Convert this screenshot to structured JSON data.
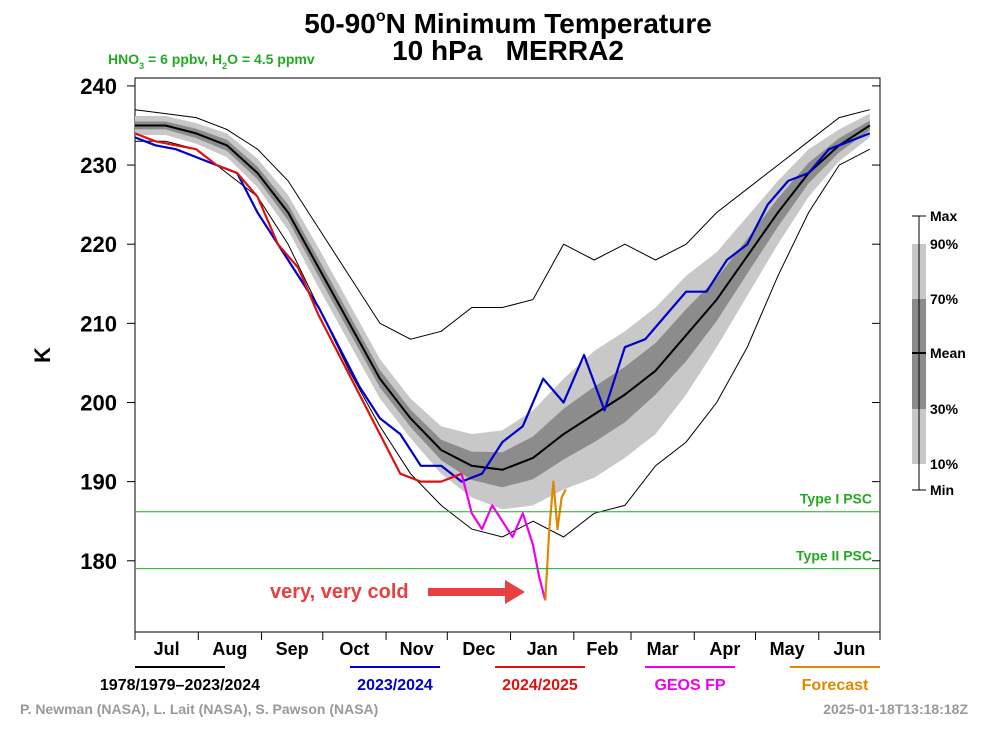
{
  "chart_data": {
    "type": "line",
    "title": {
      "prefix": "50-90",
      "sup": "o",
      "suffix": "N Minimum Temperature"
    },
    "subtitle": "10 hPa   MERRA2",
    "note_parts": [
      "HNO",
      "3",
      " = 6 ppbv, H",
      "2",
      "O = 4.5 ppmv"
    ],
    "ylabel": "K",
    "ylim": [
      171,
      241
    ],
    "yticks": [
      180,
      190,
      200,
      210,
      220,
      230,
      240
    ],
    "xlim": [
      0,
      365
    ],
    "xticks": [
      0,
      31,
      62,
      92,
      123,
      153,
      184,
      215,
      243,
      274,
      304,
      335,
      365
    ],
    "categories": [
      "Jul",
      "Aug",
      "Sep",
      "Oct",
      "Nov",
      "Dec",
      "Jan",
      "Feb",
      "Mar",
      "Apr",
      "May",
      "Jun"
    ],
    "envelope": {
      "x": [
        0,
        15,
        30,
        45,
        60,
        75,
        90,
        105,
        120,
        135,
        150,
        165,
        180,
        195,
        210,
        225,
        240,
        255,
        270,
        285,
        300,
        315,
        330,
        345,
        360
      ],
      "max": [
        237,
        236.5,
        236,
        234.5,
        232,
        228,
        222,
        216,
        210,
        208,
        209,
        212,
        212,
        213,
        220,
        218,
        220,
        218,
        220,
        224,
        227,
        230,
        233,
        236,
        237
      ],
      "p90": [
        236.2,
        236.2,
        235.3,
        234,
        230.8,
        226.2,
        219.5,
        212.5,
        205.5,
        200.5,
        197,
        196,
        196.5,
        199,
        203,
        206.5,
        209,
        212,
        216,
        219,
        223.5,
        228,
        232,
        234.5,
        236.5
      ],
      "p70": [
        235.5,
        235.5,
        234.6,
        233.2,
        229.8,
        225,
        218.1,
        211.1,
        204.1,
        199.1,
        195.3,
        193.8,
        193.7,
        195.7,
        199.2,
        202,
        204.5,
        207.5,
        211.8,
        215.7,
        220.7,
        225.8,
        230.3,
        233.4,
        235.6
      ],
      "p30": [
        234.5,
        234.5,
        233.4,
        231.8,
        228.2,
        223,
        215.9,
        208.9,
        201.9,
        196.9,
        192.7,
        190.2,
        189.3,
        190.3,
        192.8,
        195,
        197.5,
        201,
        205.2,
        210.3,
        216.3,
        222.2,
        227.7,
        231.6,
        234.4
      ],
      "p10": [
        233.8,
        233.8,
        232.7,
        231,
        227.2,
        221.8,
        214.5,
        207.5,
        200.5,
        195.5,
        191,
        188,
        186.5,
        187,
        189,
        190.5,
        193,
        196,
        201,
        207,
        213.5,
        220,
        226,
        230.5,
        233.5
      ],
      "min": [
        233,
        233,
        232,
        229,
        226,
        220,
        212,
        204,
        197,
        191,
        187,
        184,
        183,
        185,
        183,
        186,
        187,
        192,
        195,
        200,
        207,
        216,
        224,
        230,
        232
      ]
    },
    "series": [
      {
        "name": "1978/1979–2023/2024",
        "color": "#000000",
        "label_color": "#000000",
        "x": [
          0,
          15,
          30,
          45,
          60,
          75,
          90,
          105,
          120,
          135,
          150,
          165,
          180,
          195,
          210,
          225,
          240,
          255,
          270,
          285,
          300,
          315,
          330,
          345,
          360
        ],
        "values": [
          235,
          235,
          234,
          232.5,
          229,
          224,
          217,
          210,
          203,
          198,
          194,
          192,
          191.5,
          193,
          196,
          198.5,
          201,
          204,
          208.5,
          213,
          218.5,
          224,
          229,
          232.5,
          235
        ]
      },
      {
        "name": "2023/2024",
        "color": "#0000cc",
        "label_color": "#0000cc",
        "x": [
          0,
          10,
          20,
          30,
          40,
          50,
          60,
          70,
          80,
          90,
          100,
          110,
          120,
          130,
          140,
          150,
          160,
          170,
          180,
          190,
          200,
          210,
          220,
          230,
          240,
          250,
          260,
          270,
          280,
          290,
          300,
          310,
          320,
          330,
          340,
          350,
          360
        ],
        "values": [
          233.5,
          232.5,
          232,
          231,
          230,
          229,
          224,
          220,
          216,
          212,
          207,
          202,
          198,
          196,
          192,
          192,
          190,
          191,
          195,
          197,
          203,
          200,
          206,
          199,
          207,
          208,
          211,
          214,
          214,
          218,
          220,
          225,
          228,
          229,
          232,
          233,
          234
        ]
      },
      {
        "name": "2024/2025",
        "color": "#dd1111",
        "label_color": "#dd1111",
        "x": [
          0,
          10,
          20,
          30,
          40,
          50,
          60,
          70,
          80,
          90,
          100,
          110,
          120,
          130,
          140,
          150,
          160
        ],
        "values": [
          234,
          233,
          232.5,
          232,
          230,
          229,
          226,
          220,
          217,
          211,
          206,
          201,
          196,
          191,
          190,
          190,
          191
        ]
      },
      {
        "name": "GEOS FP",
        "color": "#ee00ee",
        "label_color": "#ee00ee",
        "x": [
          160,
          165,
          170,
          175,
          180,
          185,
          190,
          195,
          198,
          201
        ],
        "values": [
          191,
          186,
          184,
          187,
          185,
          183,
          186,
          182,
          178,
          175
        ]
      },
      {
        "name": "Forecast",
        "color": "#e08800",
        "label_color": "#e08800",
        "x": [
          201,
          203,
          205,
          207,
          209,
          211
        ],
        "values": [
          175,
          184,
          190,
          184,
          188,
          189
        ]
      }
    ],
    "psc": [
      {
        "label": "Type I PSC",
        "value": 186.2
      },
      {
        "label": "Type II PSC",
        "value": 179
      }
    ],
    "psc_color": "#22aa22",
    "callout": "very, very cold",
    "key_labels": [
      "Max",
      "90%",
      "70%",
      "Mean",
      "30%",
      "10%",
      "Min"
    ],
    "credits": "P. Newman (NASA), L. Lait (NASA), S. Pawson (NASA)",
    "timestamp": "2025-01-18T13:18:18Z"
  }
}
